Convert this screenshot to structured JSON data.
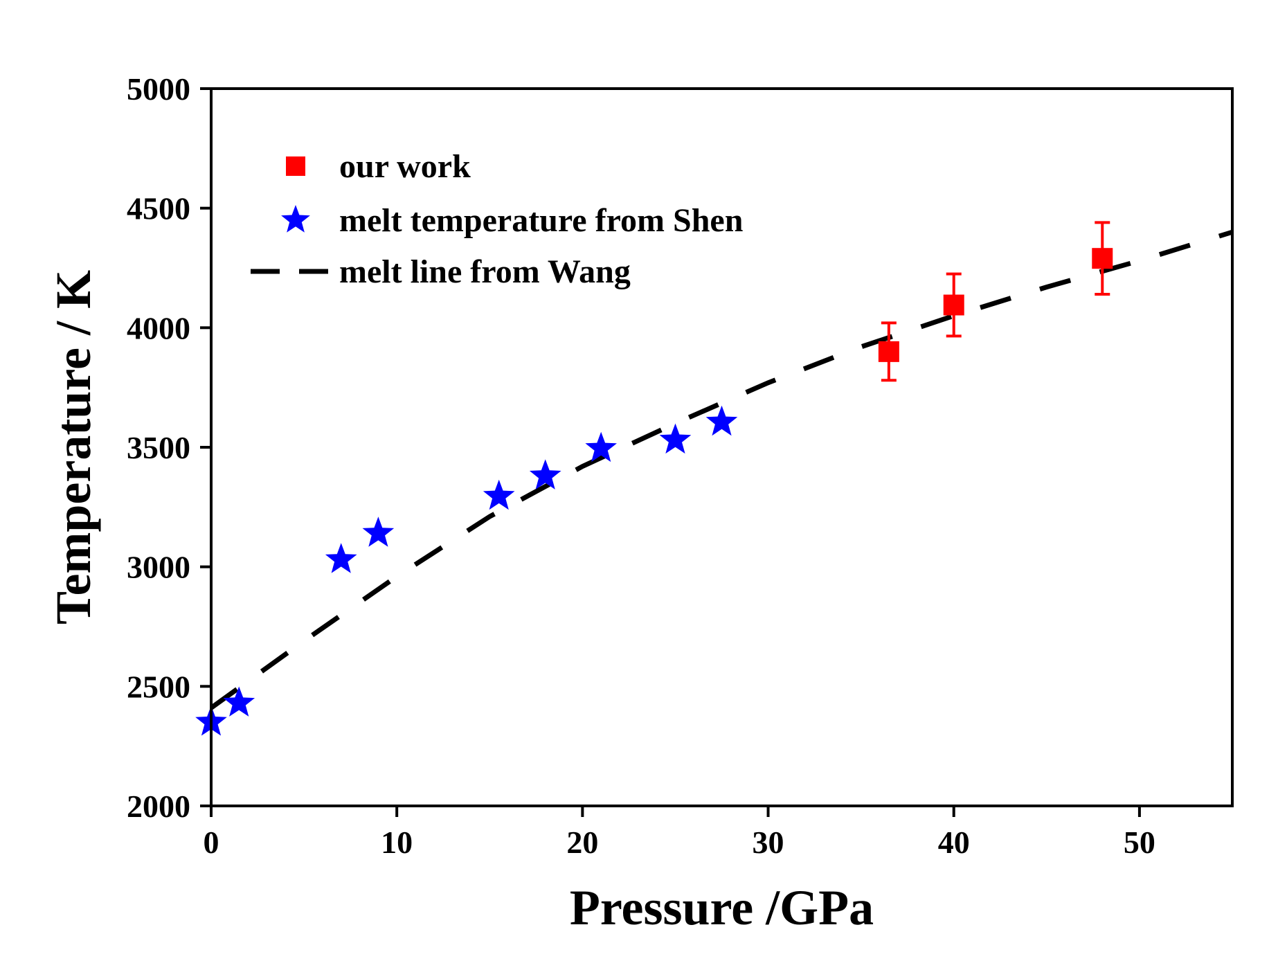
{
  "chart_data": {
    "type": "scatter",
    "xlabel": "Pressure /GPa",
    "ylabel": "Temperature / K",
    "xlim": [
      0,
      55
    ],
    "ylim": [
      2000,
      5000
    ],
    "x_ticks": [
      0,
      10,
      20,
      30,
      40,
      50
    ],
    "y_ticks": [
      2000,
      2500,
      3000,
      3500,
      4000,
      4500,
      5000
    ],
    "grid": false,
    "legend_position": "top-left",
    "series": [
      {
        "name": "our work",
        "kind": "scatter-errorbar",
        "marker": "square",
        "color": "#ff0000",
        "points": [
          {
            "x": 36.5,
            "y": 3900,
            "err": 120
          },
          {
            "x": 40.0,
            "y": 4095,
            "err": 130
          },
          {
            "x": 48.0,
            "y": 4290,
            "err": 150
          }
        ]
      },
      {
        "name": "melt temperature from Shen",
        "kind": "scatter",
        "marker": "star",
        "color": "#0000ff",
        "points": [
          {
            "x": 0.0,
            "y": 2350
          },
          {
            "x": 1.5,
            "y": 2430
          },
          {
            "x": 7.0,
            "y": 3030
          },
          {
            "x": 9.0,
            "y": 3140
          },
          {
            "x": 15.5,
            "y": 3295
          },
          {
            "x": 18.0,
            "y": 3380
          },
          {
            "x": 21.0,
            "y": 3495
          },
          {
            "x": 25.0,
            "y": 3530
          },
          {
            "x": 27.5,
            "y": 3605
          }
        ]
      },
      {
        "name": "melt line from Wang",
        "kind": "line",
        "style": "dashed",
        "color": "#000000",
        "points": [
          {
            "x": 0,
            "y": 2410
          },
          {
            "x": 5,
            "y": 2690
          },
          {
            "x": 10,
            "y": 2960
          },
          {
            "x": 15,
            "y": 3210
          },
          {
            "x": 20,
            "y": 3420
          },
          {
            "x": 25,
            "y": 3600
          },
          {
            "x": 30,
            "y": 3770
          },
          {
            "x": 35,
            "y": 3920
          },
          {
            "x": 40,
            "y": 4050
          },
          {
            "x": 45,
            "y": 4170
          },
          {
            "x": 50,
            "y": 4280
          },
          {
            "x": 55,
            "y": 4400
          }
        ]
      }
    ]
  }
}
